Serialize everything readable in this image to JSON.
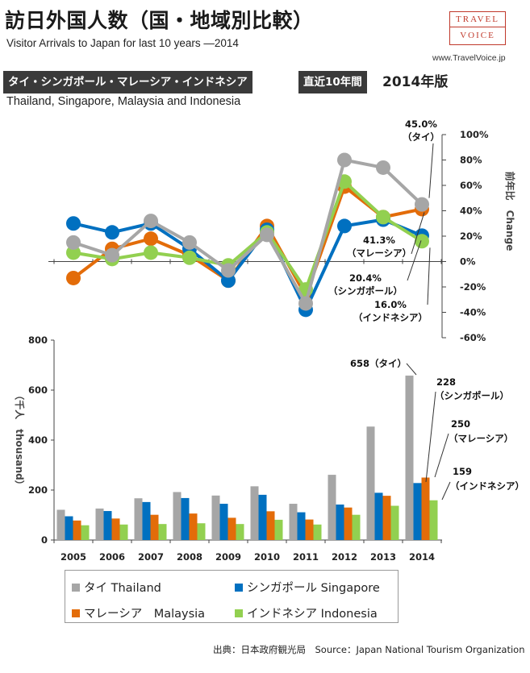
{
  "header": {
    "title": "訪日外国人数（国・地域別比較）",
    "subtitle": "Visitor Arrivals to Japan for last 10 years —2014",
    "logo_line1": "TRAVEL",
    "logo_line2": "VOICE",
    "url": "www.TravelVoice.jp",
    "countries_label": "タイ・シンガポール・マレーシア・インドネシア",
    "period_label": "直近10年間",
    "edition_label": "2014年版",
    "english_countries": "Thailand, Singapore, Malaysia and Indonesia"
  },
  "source": "出典：日本政府観光局　Source：Japan National Tourism Organization",
  "chart_data": [
    {
      "type": "line",
      "categories": [
        "2005",
        "2006",
        "2007",
        "2008",
        "2009",
        "2010",
        "2011",
        "2012",
        "2013",
        "2014"
      ],
      "ylabel": "前年比　Change",
      "ylim": [
        -60,
        100
      ],
      "yticks": [
        "100%",
        "80%",
        "60%",
        "40%",
        "20%",
        "0%",
        "-20%",
        "-40%",
        "-60%"
      ],
      "series": [
        {
          "name": "タイ Thailand",
          "color": "#a6a6a6",
          "values": [
            15,
            5,
            32,
            15,
            -7,
            21,
            -33,
            80,
            74,
            45.0
          ]
        },
        {
          "name": "シンガポール Singapore",
          "color": "#0070c0",
          "values": [
            30,
            23,
            30,
            10,
            -15,
            25,
            -38,
            28,
            33,
            20.4
          ]
        },
        {
          "name": "マレーシア Malaysia",
          "color": "#e36c09",
          "values": [
            -13,
            10,
            18,
            5,
            -15,
            28,
            -27,
            59,
            35,
            41.3
          ]
        },
        {
          "name": "インドネシア Indonesia",
          "color": "#92d050",
          "values": [
            7,
            2,
            7,
            3,
            -3,
            23,
            -22,
            63,
            35,
            16.0
          ]
        }
      ],
      "annotations": [
        {
          "value": "45.0%",
          "label": "（タイ）"
        },
        {
          "value": "41.3%",
          "label": "（マレーシア）"
        },
        {
          "value": "20.4%",
          "label": "（シンガポール）"
        },
        {
          "value": "16.0%",
          "label": "（インドネシア）"
        }
      ]
    },
    {
      "type": "bar",
      "categories": [
        "2005",
        "2006",
        "2007",
        "2008",
        "2009",
        "2010",
        "2011",
        "2012",
        "2013",
        "2014"
      ],
      "ylabel": "（千人　thousand）",
      "ylim": [
        0,
        800
      ],
      "yticks": [
        "800",
        "600",
        "400",
        "200",
        "0"
      ],
      "series": [
        {
          "name": "タイ Thailand",
          "color": "#a6a6a6",
          "values": [
            121,
            126,
            167,
            192,
            178,
            215,
            145,
            261,
            454,
            658
          ]
        },
        {
          "name": "シンガポール Singapore",
          "color": "#0070c0",
          "values": [
            95,
            116,
            152,
            168,
            145,
            181,
            111,
            142,
            189,
            228
          ]
        },
        {
          "name": "マレーシア Malaysia",
          "color": "#e36c09",
          "values": [
            78,
            86,
            101,
            106,
            89,
            115,
            82,
            130,
            177,
            250
          ]
        },
        {
          "name": "インドネシア Indonesia",
          "color": "#92d050",
          "values": [
            59,
            62,
            64,
            67,
            64,
            81,
            62,
            101,
            137,
            159
          ]
        }
      ],
      "annotations": [
        {
          "value": "658",
          "label": "658（タイ）"
        },
        {
          "value": "228",
          "label": "（シンガポール）"
        },
        {
          "value": "250",
          "label": "（マレーシア）"
        },
        {
          "value": "159",
          "label": "（インドネシア）"
        }
      ]
    }
  ],
  "legend": [
    {
      "label": "タイ Thailand",
      "color": "#a6a6a6"
    },
    {
      "label": "シンガポール Singapore",
      "color": "#0070c0"
    },
    {
      "label": "マレーシア　Malaysia",
      "color": "#e36c09"
    },
    {
      "label": "インドネシア Indonesia",
      "color": "#92d050"
    }
  ]
}
